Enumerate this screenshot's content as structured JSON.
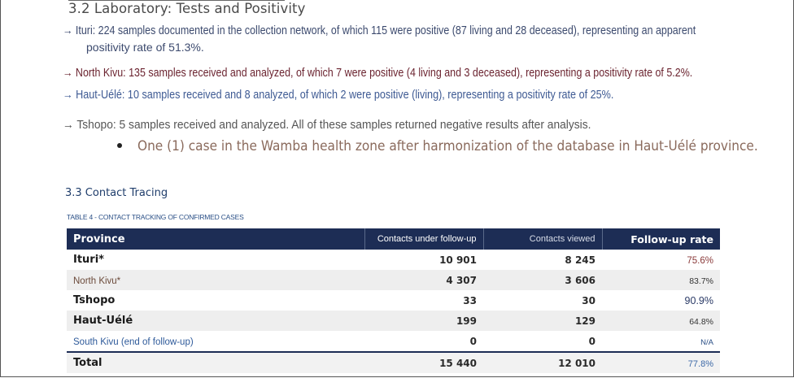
{
  "section_32": {
    "title": "3.2 Laboratory: Tests and Positivity",
    "ituri_line1": "→ Ituri: 224 samples documented in the collection network, of which 115 were positive (87 living and 28 deceased), representing an apparent",
    "ituri_line2": "positivity rate of 51.3%.",
    "north_kivu": "→ North Kivu: 135 samples received and analyzed, of which 7 were positive (4 living and 3 deceased), representing a positivity rate of 5.2%.",
    "haut_uele": "→ Haut-Uélé: 10 samples received and 8 analyzed, of which 2 were positive (living), representing a positivity rate of 25%.",
    "tshopo": "→ Tshopo: 5 samples received and analyzed. All of these samples returned negative results after analysis.",
    "bullet": "One (1) case in the Wamba health zone after harmonization of the database in Haut-Uélé province."
  },
  "section_33": {
    "title": "3.3 Contact Tracing",
    "table_caption": "TABLE 4 - CONTACT TRACKING OF CONFIRMED CASES"
  },
  "table": {
    "headers": {
      "province": "Province",
      "under_follow_up": "Contacts under follow-up",
      "viewed": "Contacts viewed",
      "rate": "Follow-up rate"
    },
    "rows": [
      {
        "province": "Ituri*",
        "under": "10 901",
        "viewed": "8 245",
        "rate": "75.6%"
      },
      {
        "province": "North Kivu*",
        "under": "4 307",
        "viewed": "3 606",
        "rate": "83.7%"
      },
      {
        "province": "Tshopo",
        "under": "33",
        "viewed": "30",
        "rate": "90.9%"
      },
      {
        "province": "Haut-Uélé",
        "under": "199",
        "viewed": "129",
        "rate": "64.8%"
      },
      {
        "province": "South Kivu (end of follow-up)",
        "under": "0",
        "viewed": "0",
        "rate": "N/A"
      }
    ],
    "total": {
      "province": "Total",
      "under": "15 440",
      "viewed": "12 010",
      "rate": "77.8%"
    }
  }
}
